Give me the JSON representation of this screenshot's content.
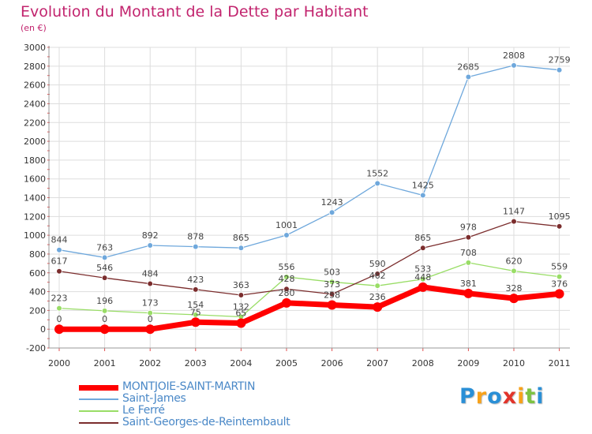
{
  "header": {
    "title": "Evolution du Montant de la Dette par Habitant",
    "subtitle": "(en €)"
  },
  "chart_data": {
    "type": "line",
    "title": "Evolution du Montant de la Dette par Habitant",
    "ylabel": "(en €)",
    "xlabel": "",
    "categories": [
      "2000",
      "2001",
      "2002",
      "2003",
      "2004",
      "2005",
      "2006",
      "2007",
      "2008",
      "2009",
      "2010",
      "2011"
    ],
    "ylim": [
      -200,
      3000
    ],
    "yticks": [
      -200,
      0,
      200,
      400,
      600,
      800,
      1000,
      1200,
      1400,
      1600,
      1800,
      2000,
      2200,
      2400,
      2600,
      2800,
      3000
    ],
    "grid": true,
    "legend_position": "bottom-left",
    "series": [
      {
        "name": "MONTJOIE-SAINT-MARTIN",
        "color": "#ff0000",
        "values": [
          0,
          0,
          0,
          75,
          65,
          280,
          258,
          236,
          448,
          381,
          328,
          376
        ]
      },
      {
        "name": "Saint-James",
        "color": "#6fa8dc",
        "values": [
          844,
          763,
          892,
          878,
          865,
          1001,
          1243,
          1552,
          1425,
          2685,
          2808,
          2759
        ]
      },
      {
        "name": "Le Ferré",
        "color": "#99dd66",
        "values": [
          223,
          196,
          173,
          154,
          132,
          556,
          503,
          462,
          533,
          708,
          620,
          559
        ]
      },
      {
        "name": "Saint-Georges-de-Reintembault",
        "color": "#7b2d2d",
        "values": [
          617,
          546,
          484,
          423,
          363,
          428,
          373,
          590,
          865,
          978,
          1147,
          1095
        ]
      }
    ]
  },
  "logo": {
    "letters": [
      {
        "char": "P",
        "color": "#2a8fd6"
      },
      {
        "char": "r",
        "color": "#f7a21b"
      },
      {
        "char": "o",
        "color": "#2a8fd6"
      },
      {
        "char": "x",
        "color": "#e2332a"
      },
      {
        "char": "i",
        "color": "#f7a21b"
      },
      {
        "char": "t",
        "color": "#7cc242"
      },
      {
        "char": "i",
        "color": "#2a8fd6"
      }
    ]
  }
}
